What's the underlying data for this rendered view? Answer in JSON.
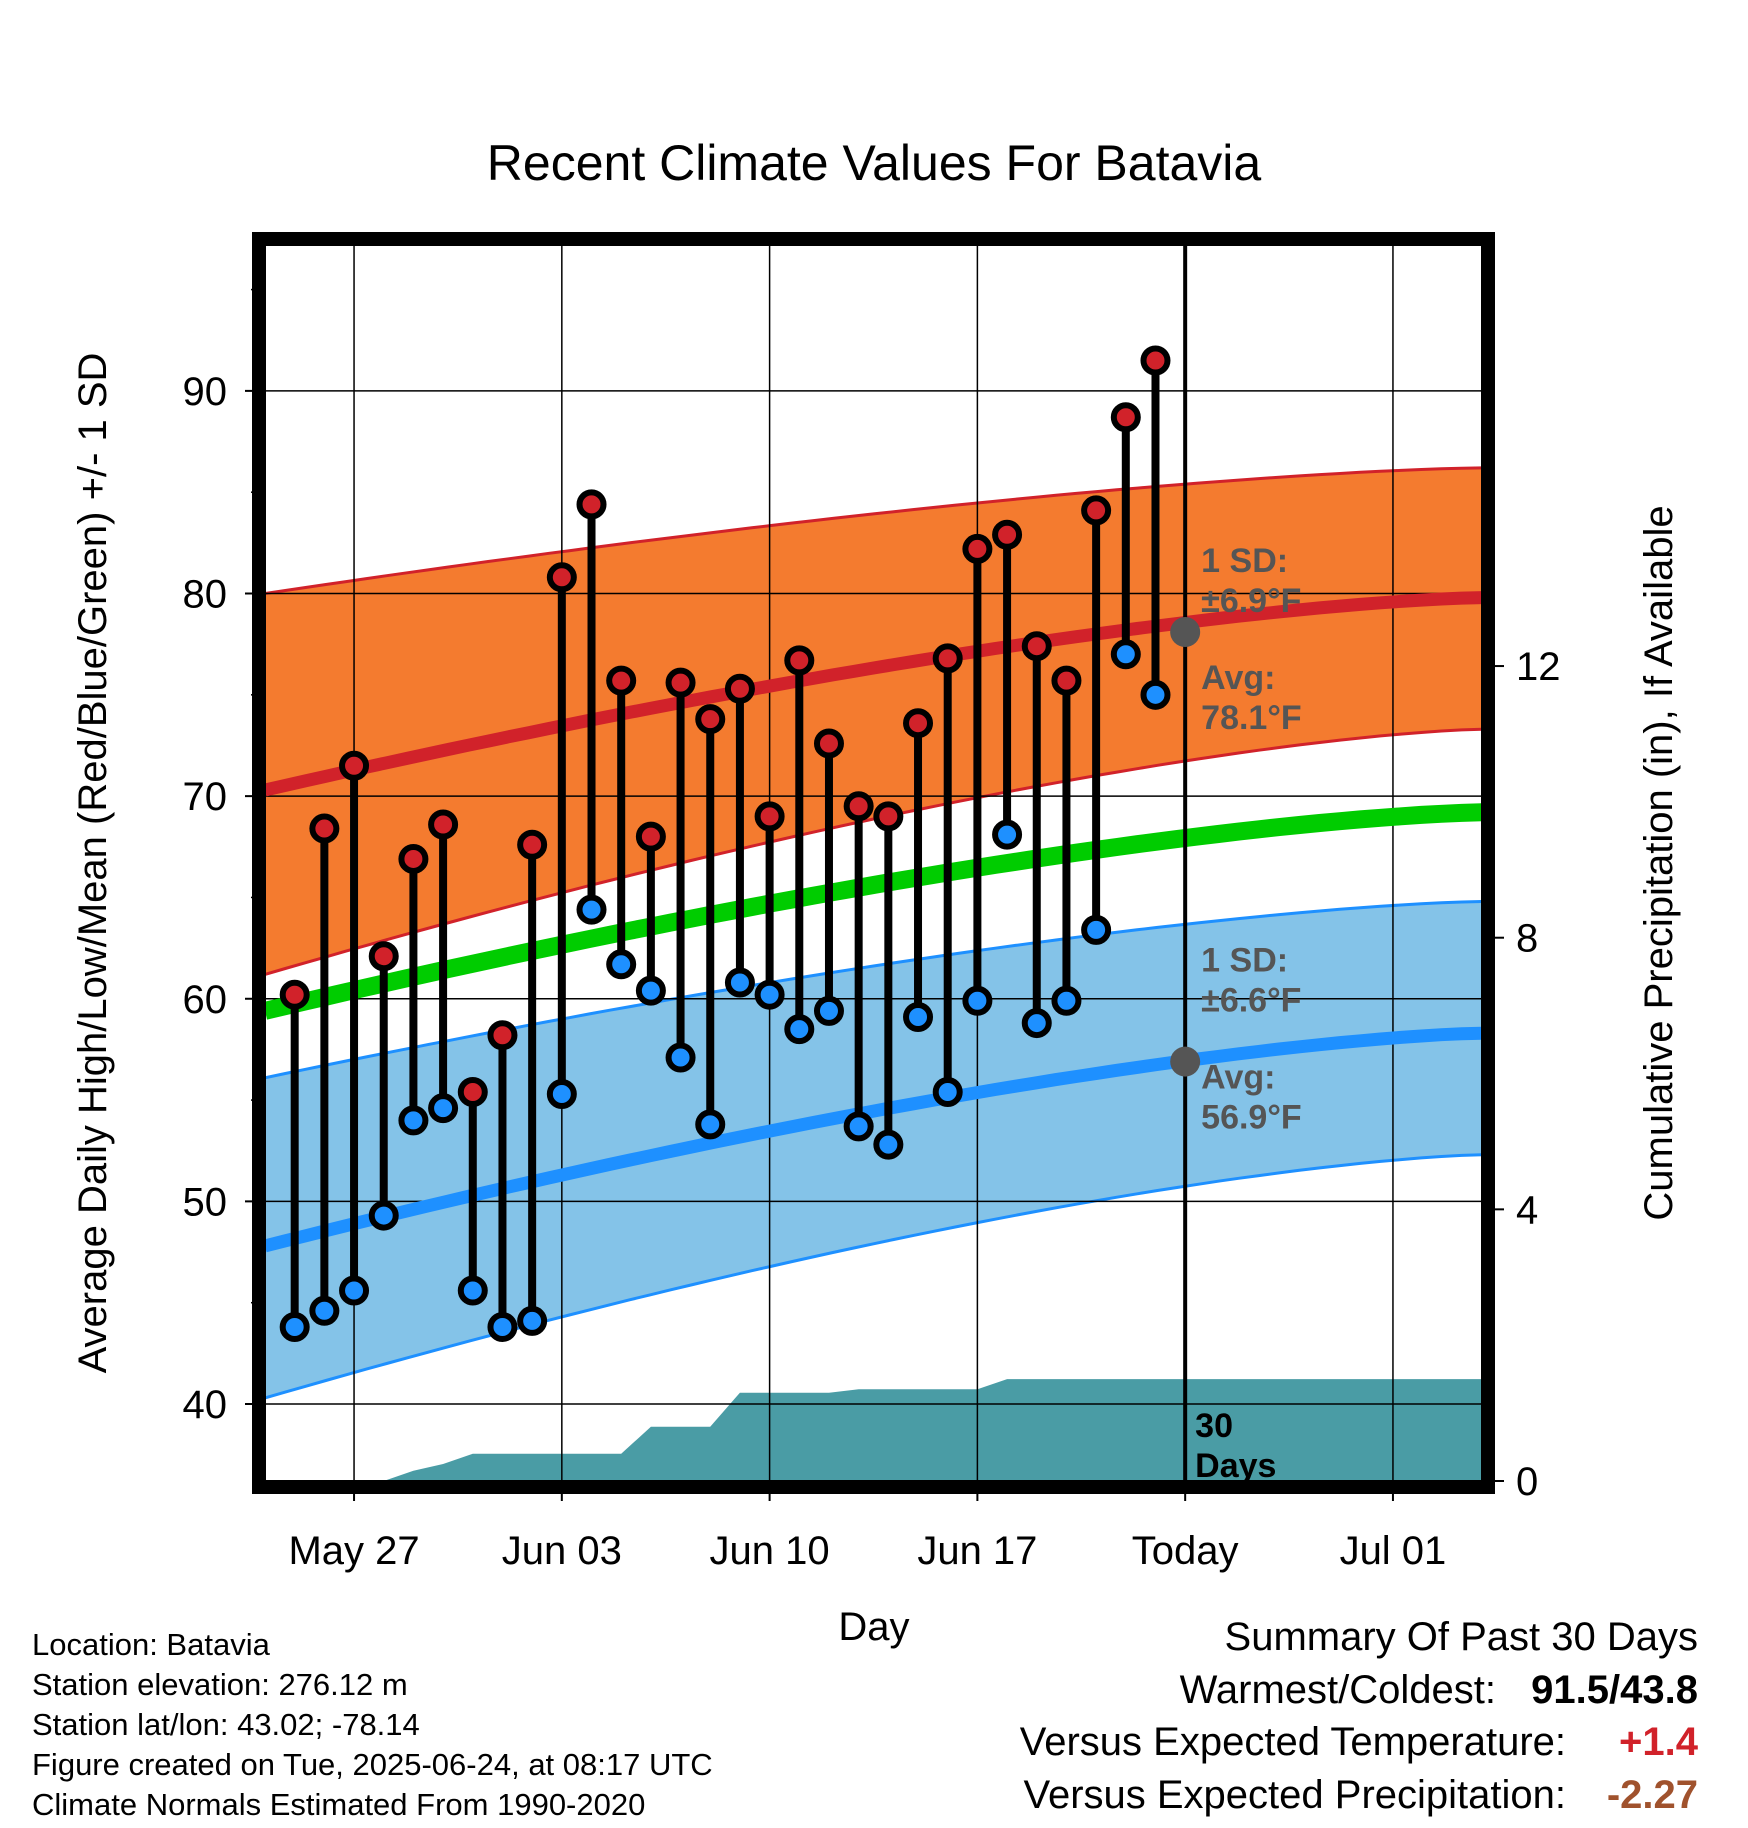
{
  "chart_data": {
    "type": "line",
    "title": "Recent Climate Values For Batavia",
    "xlabel": "Day",
    "ylabel_left": "Average Daily High/Low/Mean (Red/Blue/Green) +/- 1 SD",
    "ylabel_right": "Cumulative Precipitation (in), If Available",
    "x_days_range": [
      -27,
      14
    ],
    "x_ticks": [
      {
        "day": -24,
        "label": "May 27"
      },
      {
        "day": -17,
        "label": "Jun 03"
      },
      {
        "day": -10,
        "label": "Jun 10"
      },
      {
        "day": -3,
        "label": "Jun 17"
      },
      {
        "day": 4,
        "label": "Today"
      },
      {
        "day": 11,
        "label": "Jul 01"
      }
    ],
    "today_day": 4,
    "y_left": {
      "range": [
        36.2,
        97.2
      ],
      "ticks": [
        40,
        50,
        60,
        70,
        80,
        90
      ]
    },
    "y_right": {
      "range": [
        0,
        18.2
      ],
      "ticks": [
        0,
        4,
        8,
        12
      ]
    },
    "grid": true,
    "daily": {
      "day": [
        -26,
        -25,
        -24,
        -23,
        -22,
        -21,
        -20,
        -19,
        -18,
        -17,
        -16,
        -15,
        -14,
        -13,
        -12,
        -11,
        -10,
        -9,
        -8,
        -7,
        -6,
        -5,
        -4,
        -3,
        -2,
        -1,
        0,
        1,
        2,
        3
      ],
      "high": [
        60.2,
        68.4,
        71.5,
        62.1,
        66.9,
        68.6,
        55.4,
        58.2,
        67.6,
        80.8,
        84.4,
        75.7,
        68.0,
        75.6,
        73.8,
        75.3,
        69.0,
        76.7,
        72.6,
        69.5,
        69.0,
        73.6,
        76.8,
        82.2,
        82.9,
        77.4,
        75.7,
        84.1,
        88.7,
        91.5
      ],
      "low": [
        43.8,
        44.6,
        45.6,
        49.3,
        54.0,
        54.6,
        45.6,
        43.8,
        44.1,
        55.3,
        64.4,
        61.7,
        60.4,
        57.1,
        53.8,
        60.8,
        60.2,
        58.5,
        59.4,
        53.7,
        52.8,
        59.1,
        55.4,
        59.9,
        68.1,
        58.8,
        59.9,
        63.4,
        77.0,
        75.0
      ]
    },
    "normals": {
      "high_mean": {
        "start": 70.3,
        "end": 79.8
      },
      "high_sd_band": {
        "start": [
          61.2,
          80.0
        ],
        "end": [
          73.3,
          86.2
        ]
      },
      "mean": {
        "start": 59.4,
        "end": 69.2
      },
      "low_mean": {
        "start": 47.8,
        "end": 58.3
      },
      "low_sd_band": {
        "start": [
          40.3,
          56.1
        ],
        "end": [
          52.3,
          64.8
        ]
      }
    },
    "precip_cumulative": {
      "day": [
        -27,
        -23,
        -22,
        -21,
        -20,
        -19,
        -18,
        -17,
        -16,
        -15,
        -14,
        -13,
        -12,
        -11,
        -10,
        -9,
        -8,
        -7,
        -6,
        -5,
        -4,
        -3,
        -2,
        -1,
        0,
        1,
        2,
        3,
        4,
        14
      ],
      "value": [
        0,
        0,
        0.15,
        0.25,
        0.4,
        0.4,
        0.4,
        0.4,
        0.4,
        0.4,
        0.8,
        0.8,
        0.8,
        1.3,
        1.3,
        1.3,
        1.3,
        1.35,
        1.35,
        1.35,
        1.35,
        1.35,
        1.5,
        1.5,
        1.5,
        1.5,
        1.5,
        1.5,
        1.5,
        1.5
      ]
    },
    "annotations": {
      "high_sd": "1 SD:",
      "high_sd_value": "±6.9°F",
      "high_avg": "Avg:",
      "high_avg_value": "78.1°F",
      "high_today": 78.1,
      "low_sd": "1 SD:",
      "low_sd_value": "±6.6°F",
      "low_avg": "Avg:",
      "low_avg_value": "56.9°F",
      "low_today": 56.9,
      "days_label_1": "30",
      "days_label_2": "Days"
    },
    "colors": {
      "high": "#d1222a",
      "high_band": "#f47b2f",
      "mean": "#00cc00",
      "low": "#1e90ff",
      "low_band": "#84c3e8",
      "precip": "#4a9ca5",
      "annotation": "#555555",
      "temp_anomaly": "#d1222a",
      "precip_anomaly": "#a0522d"
    }
  },
  "info": {
    "location": "Location: Batavia",
    "elevation": "Station elevation: 276.12 m",
    "latlon": "Station lat/lon: 43.02; -78.14",
    "created": "Figure created on Tue, 2025-06-24, at 08:17 UTC",
    "normals": "Climate Normals Estimated From 1990-2020"
  },
  "summary": {
    "title": "Summary Of Past 30 Days",
    "warmest_coldest_label": "Warmest/Coldest:",
    "warmest_coldest_value": "91.5/43.8",
    "temp_label": "Versus Expected Temperature:",
    "temp_value": "+1.4",
    "precip_label": "Versus Expected Precipitation:",
    "precip_value": "-2.27"
  }
}
